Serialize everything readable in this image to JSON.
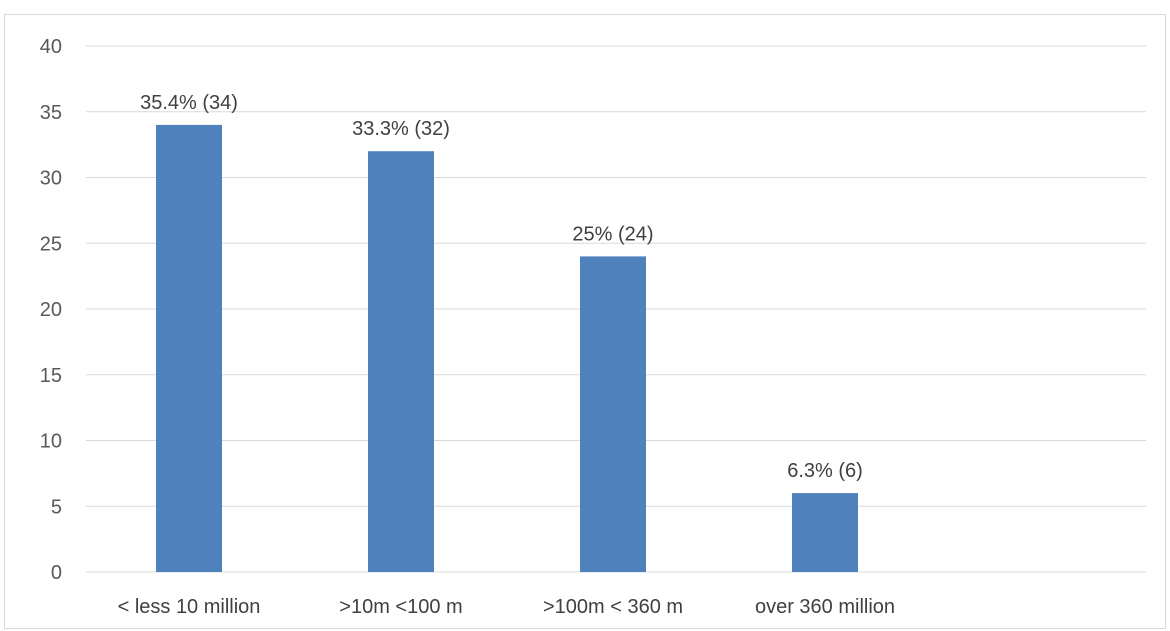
{
  "chart_data": {
    "type": "bar",
    "categories": [
      "< less 10 million",
      ">10m <100 m",
      ">100m < 360 m",
      "over 360 million"
    ],
    "values": [
      34,
      32,
      24,
      6
    ],
    "data_labels": [
      "35.4% (34)",
      "33.3% (32)",
      "25% (24)",
      "6.3% (6)"
    ],
    "ylim": [
      0,
      40
    ],
    "yticks": [
      0,
      5,
      10,
      15,
      20,
      25,
      30,
      35,
      40
    ],
    "grid": true,
    "legend": "none",
    "title": "",
    "xlabel": "",
    "ylabel": "",
    "colors": {
      "bar": "#4f81bd",
      "grid": "#d9d9d9",
      "text": "#595959"
    }
  }
}
